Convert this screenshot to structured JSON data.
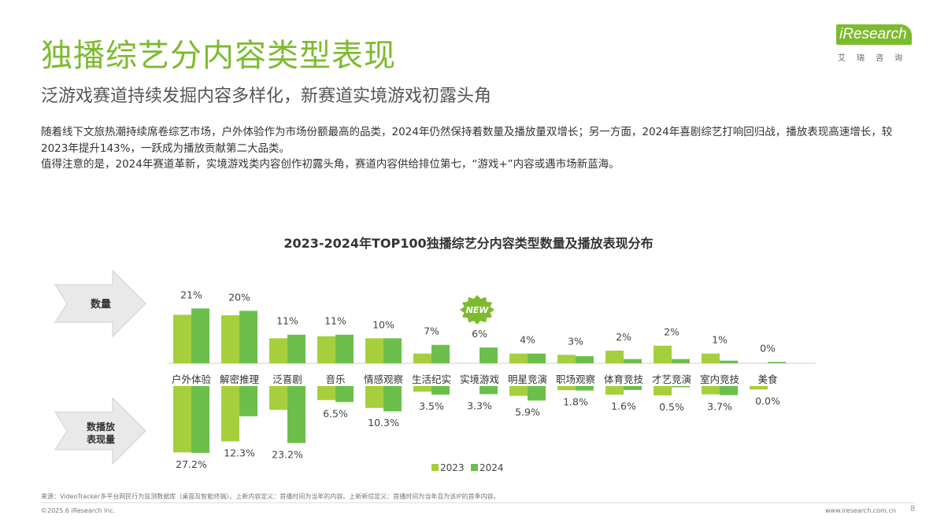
{
  "header": {
    "title": "独播综艺分内容类型表现",
    "subtitle": "泛游戏赛道持续发掘内容多样化，新赛道实境游戏初露头角"
  },
  "logo": {
    "brand": "iResearch",
    "tagline": "艾瑞咨询"
  },
  "body": {
    "paragraph1": "随着线下文旅热潮持续席卷综艺市场，户外体验作为市场份额最高的品类，2024年仍然保持着数量及播放量双增长；另一方面，2024年喜剧综艺打响回归战，播放表现高速增长，较2023年提升143%，一跃成为播放贡献第二大品类。",
    "paragraph2": "值得注意的是，2024年赛道革新，实境游戏类内容创作初露头角，赛道内容供给排位第七，“游戏+”内容或遇市场新蓝海。"
  },
  "chart_data": {
    "type": "bar",
    "title": "2023-2024年TOP100独播综艺分内容类型数量及播放表现分布",
    "categories": [
      "户外体验",
      "解密推理",
      "泛喜剧",
      "音乐",
      "情感观察",
      "生活纪实",
      "实境游戏",
      "明星竞演",
      "职场观察",
      "体育竞技",
      "才艺竞演",
      "室内竞技",
      "美食"
    ],
    "row_labels": {
      "top": "数量",
      "bottom": "数播放表现量"
    },
    "badge": "NEW",
    "colors": {
      "2023": "#a5cf3c",
      "2024": "#6dbf4b"
    },
    "panels": [
      {
        "name": "数量",
        "series": [
          {
            "name": "2023",
            "values": [
              18.5,
              18.3,
              9.5,
              10.3,
              9.5,
              3.7,
              0.0,
              3.7,
              3.2,
              4.8,
              6.7,
              3.7,
              0.0
            ]
          },
          {
            "name": "2024",
            "values": [
              20.9,
              20.0,
              10.9,
              10.9,
              9.5,
              7.0,
              6.0,
              3.7,
              2.7,
              1.6,
              1.6,
              1.0,
              0.5
            ]
          }
        ],
        "labels_2024": [
          "21%",
          "20%",
          "11%",
          "11%",
          "10%",
          "7%",
          "6%",
          "4%",
          "3%",
          "2%",
          "2%",
          "1%",
          "0%"
        ]
      },
      {
        "name": "播放表现量",
        "series": [
          {
            "name": "2023",
            "values": [
              27.0,
              22.5,
              9.7,
              5.7,
              8.9,
              2.3,
              0.0,
              4.0,
              1.7,
              3.5,
              3.8,
              3.4,
              1.4
            ]
          },
          {
            "name": "2024",
            "values": [
              27.2,
              12.3,
              23.2,
              6.5,
              10.3,
              3.5,
              3.3,
              5.9,
              1.8,
              1.6,
              0.5,
              3.7,
              0.0
            ]
          }
        ],
        "labels_2024": [
          "27.2%",
          "12.3%",
          "23.2%",
          "6.5%",
          "10.3%",
          "3.5%",
          "3.3%",
          "5.9%",
          "1.8%",
          "1.6%",
          "0.5%",
          "3.7%",
          "0.0%"
        ]
      }
    ],
    "legend": [
      "2023",
      "2024"
    ]
  },
  "footer": {
    "source": "来源：VideoTracker多平台网民行为监测数据库（桌面及智能终端）。上新内容定义：首播时间为当年的内容。上新新综定义：首播时间为当年且为该IP的首季内容。",
    "copyright": "©2025.6 iResearch Inc.",
    "site": "www.iresearch.com.cn",
    "page": "8"
  }
}
